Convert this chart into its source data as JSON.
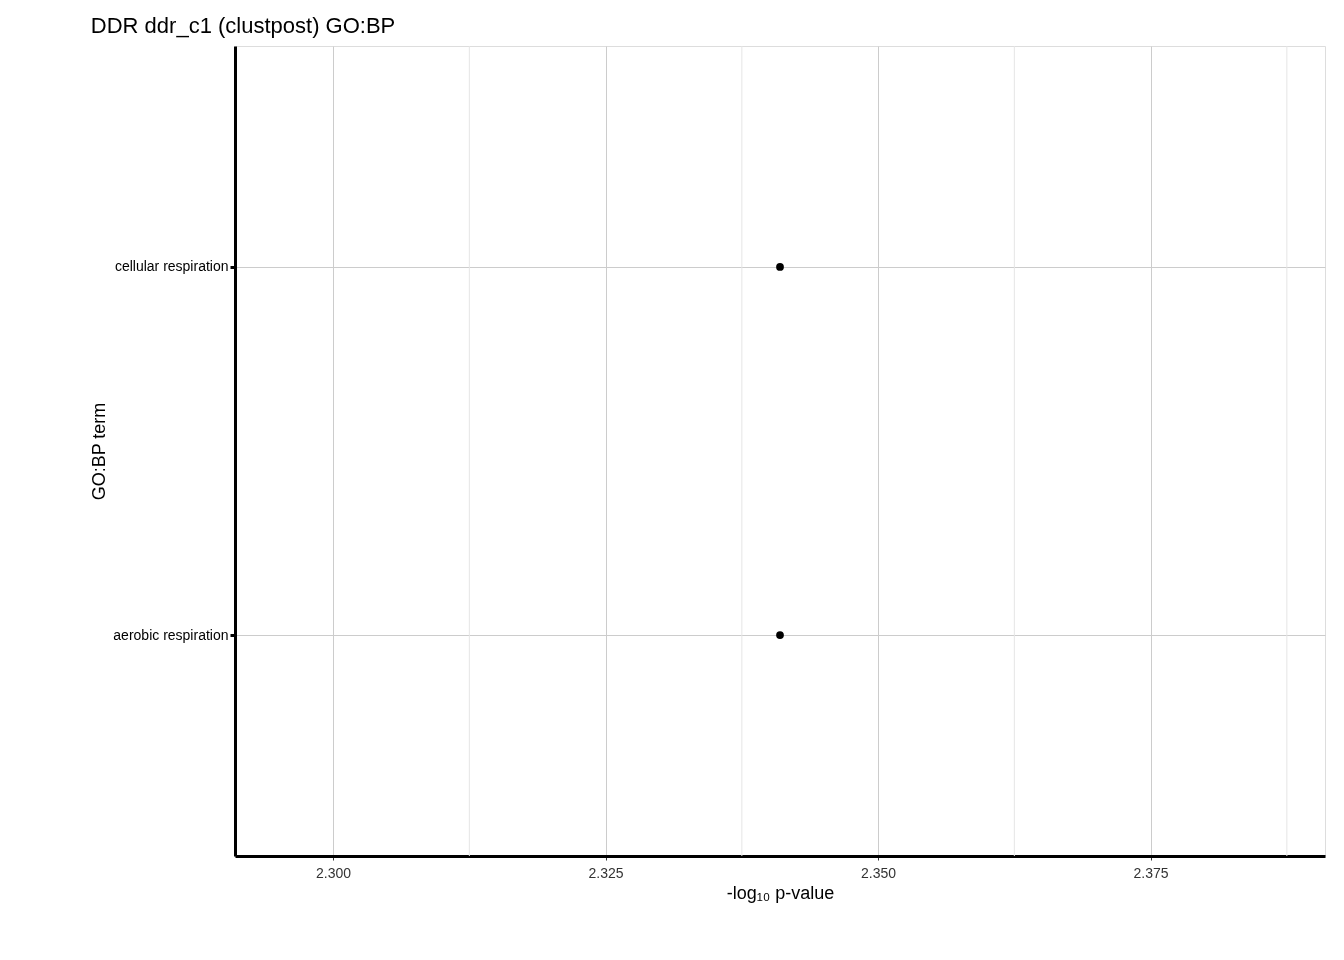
{
  "chart_data": {
    "type": "scatter",
    "title": "DDR ddr_c1 (clustpost) GO:BP",
    "xlabel": "-log₁₀ p-value",
    "ylabel": "GO:BP term",
    "categories": [
      "cellular respiration",
      "aerobic respiration"
    ],
    "series": [
      {
        "color": "#000000",
        "values": [
          2.341,
          2.341
        ]
      }
    ],
    "orientation": "horizontal",
    "marker": "circle",
    "xlim": [
      2.291,
      2.391
    ],
    "xticks": [
      {
        "value": 2.3,
        "label": "2.300"
      },
      {
        "value": 2.3125,
        "label": null
      },
      {
        "value": 2.325,
        "label": "2.325"
      },
      {
        "value": 2.3375,
        "label": null
      },
      {
        "value": 2.35,
        "label": "2.350"
      },
      {
        "value": 2.3625,
        "label": null
      },
      {
        "value": 2.375,
        "label": "2.375"
      },
      {
        "value": 2.3875,
        "label": null
      }
    ],
    "grid": true
  }
}
